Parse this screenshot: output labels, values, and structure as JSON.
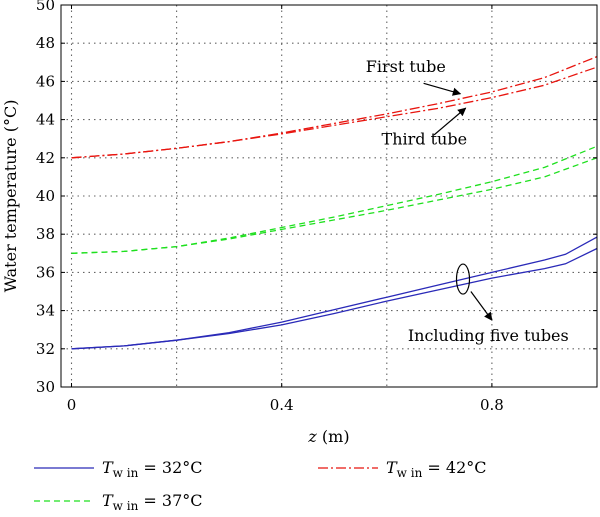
{
  "chart_data": {
    "type": "line",
    "xlabel": {
      "var": "z",
      "unit": " (m)"
    },
    "ylabel": "Water temperature (°C)",
    "xlim": [
      -0.02,
      1.0
    ],
    "ylim": [
      30,
      50
    ],
    "x_ticks": [
      0,
      0.4,
      0.8
    ],
    "x_tick_labels": [
      "0",
      "0.4",
      "0.8"
    ],
    "x_grid": [
      0,
      0.2,
      0.4,
      0.6,
      0.8
    ],
    "y_ticks": [
      30,
      32,
      34,
      36,
      38,
      40,
      42,
      44,
      46,
      48,
      50
    ],
    "grid": "dotted",
    "series": [
      {
        "key": "win42_first",
        "color": "#e8150f",
        "dash": "10,3,2,3",
        "x": [
          0,
          0.1,
          0.2,
          0.3,
          0.4,
          0.5,
          0.6,
          0.7,
          0.8,
          0.9,
          1.0
        ],
        "y": [
          42.0,
          42.2,
          42.5,
          42.85,
          43.3,
          43.8,
          44.3,
          44.85,
          45.45,
          46.2,
          47.3
        ]
      },
      {
        "key": "win42_third",
        "color": "#e8150f",
        "dash": "10,3,2,3",
        "x": [
          0,
          0.1,
          0.2,
          0.3,
          0.4,
          0.5,
          0.6,
          0.7,
          0.8,
          0.9,
          1.0
        ],
        "y": [
          42.0,
          42.2,
          42.5,
          42.85,
          43.25,
          43.7,
          44.15,
          44.6,
          45.15,
          45.8,
          46.75
        ]
      },
      {
        "key": "win37_first",
        "color": "#1ee01e",
        "dash": "6,4",
        "x": [
          0,
          0.1,
          0.2,
          0.3,
          0.4,
          0.5,
          0.6,
          0.7,
          0.8,
          0.9,
          1.0
        ],
        "y": [
          37.0,
          37.1,
          37.35,
          37.8,
          38.35,
          38.9,
          39.5,
          40.1,
          40.75,
          41.5,
          42.6
        ]
      },
      {
        "key": "win37_third",
        "color": "#1ee01e",
        "dash": "6,4",
        "x": [
          0,
          0.1,
          0.2,
          0.3,
          0.4,
          0.5,
          0.6,
          0.7,
          0.8,
          0.9,
          1.0
        ],
        "y": [
          37.0,
          37.1,
          37.35,
          37.75,
          38.25,
          38.75,
          39.25,
          39.8,
          40.35,
          41.0,
          42.0
        ]
      },
      {
        "key": "win32_a",
        "color": "#2a2ab8",
        "dash": "",
        "x": [
          0,
          0.1,
          0.2,
          0.3,
          0.4,
          0.5,
          0.6,
          0.7,
          0.8,
          0.9,
          0.94,
          1.0
        ],
        "y": [
          32.0,
          32.15,
          32.45,
          32.85,
          33.4,
          34.05,
          34.7,
          35.35,
          36.0,
          36.65,
          36.95,
          37.85
        ]
      },
      {
        "key": "win32_b",
        "color": "#2a2ab8",
        "dash": "",
        "x": [
          0,
          0.1,
          0.2,
          0.3,
          0.4,
          0.5,
          0.6,
          0.7,
          0.8,
          0.9,
          0.94,
          1.0
        ],
        "y": [
          32.0,
          32.15,
          32.45,
          32.8,
          33.25,
          33.85,
          34.5,
          35.1,
          35.7,
          36.2,
          36.45,
          37.25
        ]
      }
    ],
    "annotations": [
      {
        "key": "first_tube",
        "text": "First tube",
        "tx": 0.56,
        "ty": 46.5,
        "ax": 0.67,
        "ay": 45.9,
        "bx": 0.74,
        "by": 45.35
      },
      {
        "key": "third_tube",
        "text": "Third tube",
        "tx": 0.59,
        "ty": 42.7,
        "ax": 0.69,
        "ay": 43.2,
        "bx": 0.75,
        "by": 44.6
      },
      {
        "key": "five_tubes",
        "text": "Including five tubes",
        "tx": 0.64,
        "ty": 32.4,
        "ax": 0.76,
        "ay": 35.0,
        "bx": 0.8,
        "by": 33.5,
        "ellipse_x": 0.745,
        "ellipse_y": 35.65
      }
    ],
    "legend": {
      "placement": "bottom",
      "items": [
        {
          "label_var": "T",
          "label_sub": "w in",
          "label_value": " = 32°C",
          "color": "#2a2ab8",
          "dash": ""
        },
        {
          "label_var": "T",
          "label_sub": "w in",
          "label_value": " = 37°C",
          "color": "#1ee01e",
          "dash": "6,4"
        },
        {
          "label_var": "T",
          "label_sub": "w in",
          "label_value": " = 42°C",
          "color": "#e8150f",
          "dash": "10,3,2,3"
        }
      ]
    }
  }
}
